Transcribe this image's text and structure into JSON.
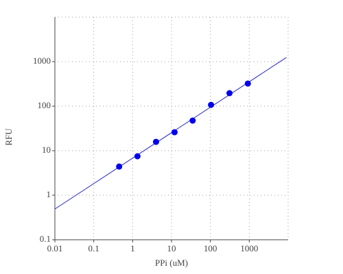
{
  "chart_data": {
    "type": "scatter",
    "xlabel": "PPi (uM)",
    "ylabel": "RFU",
    "log_x": true,
    "log_y": true,
    "grid": true,
    "series": [
      {
        "color": "#0000ee",
        "x": [
          0.45,
          1.33,
          4,
          12,
          35,
          104,
          310,
          920
        ],
        "values": [
          4.4,
          7.5,
          15.8,
          26,
          47.5,
          107,
          196,
          322
        ]
      }
    ],
    "fit": {
      "color": "#2222cc",
      "x": [
        0.01,
        9000
      ],
      "values": [
        0.49,
        1240
      ]
    },
    "xlim": [
      0.01,
      10000
    ],
    "xticks": [
      0.01,
      0.1,
      1,
      10,
      100,
      1000
    ],
    "ylim": [
      0.1,
      10000
    ],
    "yticks": [
      0.1,
      1,
      10,
      100,
      1000
    ]
  }
}
